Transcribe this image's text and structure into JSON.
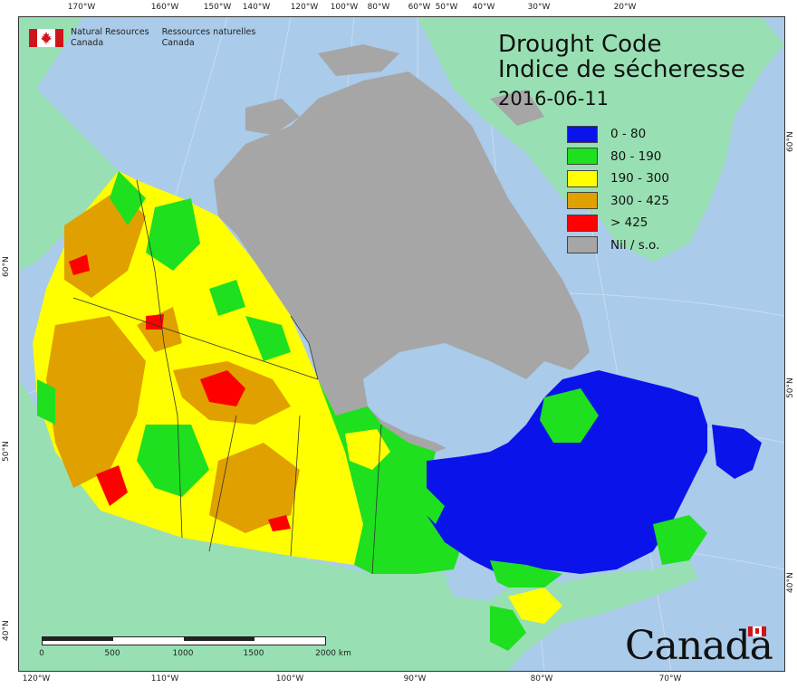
{
  "title": {
    "line1": "Drought Code",
    "line2": "Indice de sécheresse",
    "date": "2016-06-11"
  },
  "agency": {
    "en_line1": "Natural Resources",
    "en_line2": "Canada",
    "fr_line1": "Ressources naturelles",
    "fr_line2": "Canada"
  },
  "wordmark": "Canada",
  "legend": [
    {
      "label": "0 - 80",
      "color": "#0a14ea"
    },
    {
      "label": "80 - 190",
      "color": "#1ee01e"
    },
    {
      "label": "190 - 300",
      "color": "#ffff00"
    },
    {
      "label": "300 - 425",
      "color": "#e0a000"
    },
    {
      "label": "> 425",
      "color": "#ff0000"
    },
    {
      "label": "Nil / s.o.",
      "color": "#a6a6a6"
    }
  ],
  "colors": {
    "ocean": "#aacbe9",
    "land_outside": "#98e0b3"
  },
  "graticule": {
    "top": [
      "170°W",
      "160°W",
      "150°W",
      "140°W",
      "120°W",
      "100°W",
      "80°W",
      "60°W",
      "50°W",
      "40°W",
      "30°W",
      "20°W"
    ],
    "bottom": [
      "120°W",
      "110°W",
      "100°W",
      "90°W",
      "80°W",
      "70°W"
    ],
    "left": [
      "60°N",
      "50°N",
      "40°N"
    ],
    "right": [
      "60°N",
      "50°N",
      "40°N"
    ]
  },
  "scalebar": {
    "labels": [
      "0",
      "500",
      "1000",
      "1500",
      "2000 km"
    ]
  }
}
